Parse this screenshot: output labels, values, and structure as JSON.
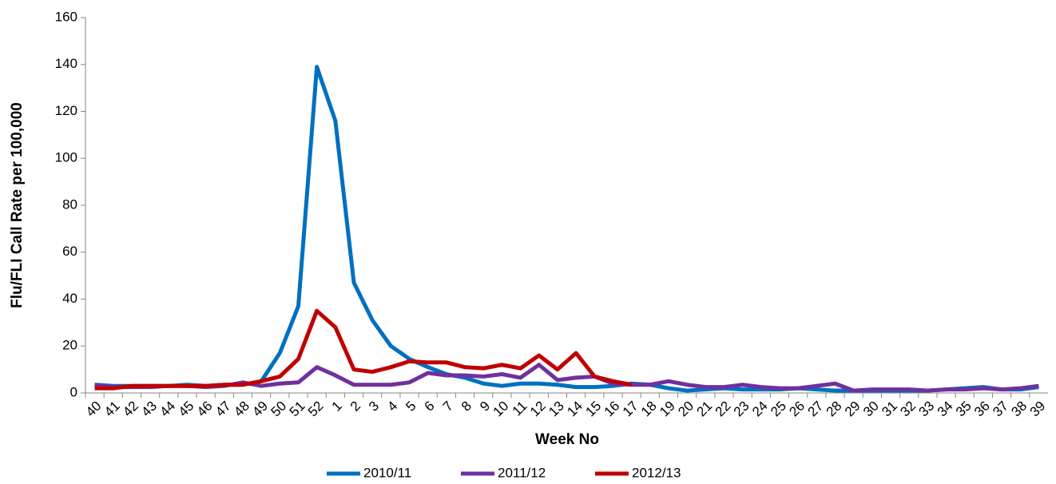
{
  "chart_data": {
    "type": "line",
    "x_label": "Week No",
    "y_label": "Flu/FLI Call Rate per 100,000",
    "categories": [
      "40",
      "41",
      "42",
      "43",
      "44",
      "45",
      "46",
      "47",
      "48",
      "49",
      "50",
      "51",
      "52",
      "1",
      "2",
      "3",
      "4",
      "5",
      "6",
      "7",
      "8",
      "9",
      "10",
      "11",
      "12",
      "13",
      "14",
      "15",
      "16",
      "17",
      "18",
      "19",
      "20",
      "21",
      "22",
      "23",
      "24",
      "25",
      "26",
      "27",
      "28",
      "29",
      "30",
      "31",
      "32",
      "33",
      "34",
      "35",
      "36",
      "37",
      "38",
      "39"
    ],
    "series": [
      {
        "name": "2010/11",
        "color": "#0070c0",
        "values": [
          3.5,
          3,
          3,
          3,
          3,
          3.5,
          3,
          3.5,
          3.5,
          5,
          17,
          37,
          139,
          116,
          47,
          31,
          20,
          14.5,
          11,
          8,
          6.5,
          4,
          3,
          4,
          4,
          3.5,
          2.5,
          2.5,
          3,
          4,
          3.5,
          2,
          1,
          1.5,
          2,
          1.5,
          1.5,
          1.5,
          2,
          1.5,
          1,
          1,
          1,
          1,
          1,
          1,
          1.5,
          2,
          2.5,
          1.5,
          1.5,
          2.5
        ]
      },
      {
        "name": "2011/12",
        "color": "#7030a0",
        "values": [
          3.5,
          2.5,
          2.5,
          2.5,
          3,
          3,
          2.5,
          3,
          4.5,
          3,
          4,
          4.5,
          11,
          7.5,
          3.5,
          3.5,
          3.5,
          4.5,
          8.5,
          7.5,
          7.5,
          7,
          8,
          6.5,
          12,
          5.5,
          6.5,
          7,
          4,
          3.5,
          3.5,
          5,
          3.5,
          2.5,
          2.5,
          3.5,
          2.5,
          2,
          2,
          3,
          4,
          1,
          1.5,
          1.5,
          1.5,
          1,
          1.5,
          1.5,
          2,
          1.5,
          2,
          3
        ]
      },
      {
        "name": "2012/13",
        "color": "#c00000",
        "values": [
          2,
          2,
          3,
          3,
          3,
          3,
          3,
          3.5,
          3.5,
          5,
          7,
          14.5,
          35,
          28,
          10,
          9,
          11,
          13.5,
          13,
          13,
          11,
          10.5,
          12,
          10.5,
          16,
          10,
          17,
          7,
          5,
          3.5,
          null,
          null,
          null,
          null,
          null,
          null,
          null,
          null,
          null,
          null,
          null,
          null,
          null,
          null,
          null,
          null,
          null,
          null,
          null,
          null,
          null,
          null
        ]
      }
    ],
    "ylim": [
      0,
      160
    ],
    "yticks": [
      0,
      20,
      40,
      60,
      80,
      100,
      120,
      140,
      160
    ],
    "legend": "bottom"
  }
}
